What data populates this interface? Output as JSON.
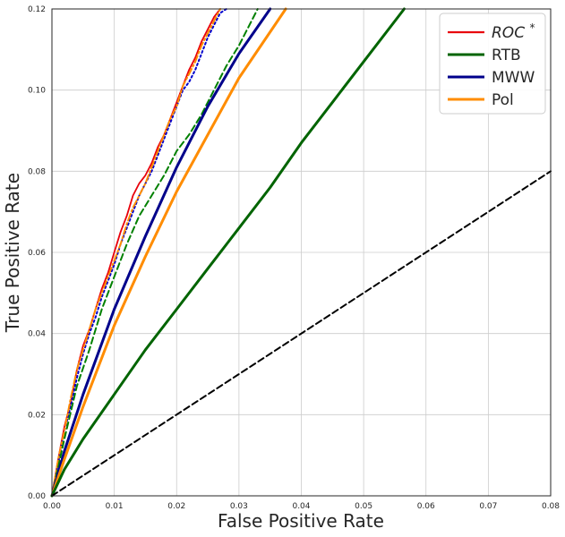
{
  "chart_data": {
    "type": "line",
    "title": "",
    "xlabel": "False Positive Rate",
    "ylabel": "True Positive Rate",
    "xlim": [
      0,
      0.08
    ],
    "ylim": [
      0,
      0.12
    ],
    "xticks": [
      "0.00",
      "0.01",
      "0.02",
      "0.03",
      "0.04",
      "0.05",
      "0.06",
      "0.07",
      "0.08"
    ],
    "yticks": [
      "0.00",
      "0.02",
      "0.04",
      "0.06",
      "0.08",
      "0.10",
      "0.12"
    ],
    "xtick_values": [
      0,
      0.01,
      0.02,
      0.03,
      0.04,
      0.05,
      0.06,
      0.07,
      0.08
    ],
    "ytick_values": [
      0,
      0.02,
      0.04,
      0.06,
      0.08,
      0.1,
      0.12
    ],
    "grid": true,
    "legend_position": "top-right",
    "legend": [
      {
        "label": "ROC",
        "superscript": "*",
        "italic": true,
        "color": "#e8000b"
      },
      {
        "label": "RTB",
        "superscript": "",
        "italic": false,
        "color": "#006400"
      },
      {
        "label": "MWW",
        "superscript": "",
        "italic": false,
        "color": "#00008b"
      },
      {
        "label": "Pol",
        "superscript": "",
        "italic": false,
        "color": "#ff8c00"
      }
    ],
    "series": [
      {
        "name": "ROC*",
        "color": "#e8000b",
        "style": "solid",
        "width": 1.8,
        "x": [
          0,
          0.001,
          0.002,
          0.003,
          0.004,
          0.005,
          0.006,
          0.007,
          0.008,
          0.009,
          0.01,
          0.011,
          0.012,
          0.013,
          0.014,
          0.015,
          0.016,
          0.017,
          0.018,
          0.019,
          0.02,
          0.021,
          0.022,
          0.023,
          0.024,
          0.025,
          0.026,
          0.027
        ],
        "y": [
          0,
          0.009,
          0.017,
          0.023,
          0.031,
          0.037,
          0.041,
          0.046,
          0.051,
          0.055,
          0.06,
          0.065,
          0.069,
          0.074,
          0.077,
          0.079,
          0.082,
          0.086,
          0.089,
          0.093,
          0.097,
          0.101,
          0.105,
          0.108,
          0.112,
          0.115,
          0.118,
          0.12
        ]
      },
      {
        "name": "ROC* dotted",
        "color": "#0000cc",
        "style": "dotted",
        "width": 2,
        "x": [
          0,
          0.001,
          0.002,
          0.003,
          0.004,
          0.005,
          0.006,
          0.007,
          0.008,
          0.009,
          0.01,
          0.011,
          0.012,
          0.013,
          0.014,
          0.015,
          0.016,
          0.017,
          0.018,
          0.019,
          0.02,
          0.021,
          0.022,
          0.023,
          0.024,
          0.025,
          0.026,
          0.027,
          0.028
        ],
        "y": [
          0,
          0.008,
          0.016,
          0.022,
          0.029,
          0.035,
          0.04,
          0.044,
          0.049,
          0.053,
          0.057,
          0.062,
          0.066,
          0.07,
          0.074,
          0.077,
          0.08,
          0.084,
          0.088,
          0.092,
          0.096,
          0.1,
          0.102,
          0.105,
          0.109,
          0.113,
          0.116,
          0.119,
          0.12
        ]
      },
      {
        "name": "Pol dashdot",
        "color": "#ff8c00",
        "style": "dashdot",
        "width": 2,
        "x": [
          0,
          0.001,
          0.002,
          0.003,
          0.004,
          0.005,
          0.006,
          0.007,
          0.008,
          0.009,
          0.01,
          0.011,
          0.012,
          0.013,
          0.014,
          0.015,
          0.016,
          0.017,
          0.018,
          0.019,
          0.02,
          0.021,
          0.022,
          0.023,
          0.024,
          0.025,
          0.026,
          0.027
        ],
        "y": [
          0,
          0.009,
          0.016,
          0.024,
          0.031,
          0.036,
          0.041,
          0.046,
          0.05,
          0.054,
          0.058,
          0.062,
          0.067,
          0.071,
          0.074,
          0.077,
          0.081,
          0.085,
          0.089,
          0.093,
          0.096,
          0.101,
          0.104,
          0.107,
          0.111,
          0.114,
          0.117,
          0.12
        ]
      },
      {
        "name": "RTB dashed",
        "color": "#008000",
        "style": "dashed",
        "width": 2,
        "x": [
          0,
          0.002,
          0.004,
          0.006,
          0.008,
          0.01,
          0.012,
          0.014,
          0.016,
          0.018,
          0.02,
          0.022,
          0.024,
          0.026,
          0.028,
          0.03,
          0.032,
          0.033
        ],
        "y": [
          0,
          0.014,
          0.027,
          0.036,
          0.046,
          0.054,
          0.062,
          0.069,
          0.074,
          0.079,
          0.085,
          0.089,
          0.094,
          0.1,
          0.106,
          0.111,
          0.117,
          0.12
        ]
      },
      {
        "name": "MWW",
        "color": "#00008b",
        "style": "solid",
        "width": 3,
        "x": [
          0,
          0.002,
          0.005,
          0.01,
          0.015,
          0.02,
          0.025,
          0.03,
          0.035
        ],
        "y": [
          0,
          0.011,
          0.025,
          0.046,
          0.064,
          0.081,
          0.096,
          0.109,
          0.12
        ]
      },
      {
        "name": "Pol",
        "color": "#ff8c00",
        "style": "solid",
        "width": 3,
        "x": [
          0,
          0.002,
          0.005,
          0.01,
          0.015,
          0.02,
          0.025,
          0.03,
          0.0375
        ],
        "y": [
          0,
          0.009,
          0.022,
          0.042,
          0.059,
          0.075,
          0.089,
          0.103,
          0.12
        ]
      },
      {
        "name": "RTB",
        "color": "#006400",
        "style": "solid",
        "width": 3,
        "x": [
          0,
          0.002,
          0.005,
          0.01,
          0.015,
          0.02,
          0.025,
          0.03,
          0.035,
          0.04,
          0.045,
          0.05,
          0.0565
        ],
        "y": [
          0,
          0.0065,
          0.014,
          0.025,
          0.036,
          0.046,
          0.056,
          0.066,
          0.076,
          0.087,
          0.097,
          0.107,
          0.12
        ]
      },
      {
        "name": "Chance",
        "color": "#000000",
        "style": "dashed",
        "width": 2,
        "x": [
          0,
          0.08
        ],
        "y": [
          0,
          0.08
        ]
      }
    ]
  }
}
